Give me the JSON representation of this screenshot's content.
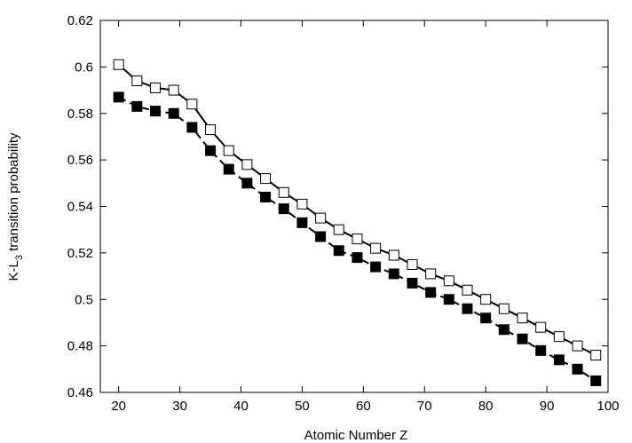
{
  "chart_data": {
    "type": "line",
    "title": "",
    "xlabel": "Atomic Number Z",
    "ylabel": {
      "base": "K-L",
      "subscript": "3",
      "rest": " transition probability"
    },
    "xlim": [
      17,
      100
    ],
    "ylim": [
      0.46,
      0.62
    ],
    "x_ticks": [
      20,
      30,
      40,
      50,
      60,
      70,
      80,
      90,
      100
    ],
    "y_ticks": [
      0.46,
      0.48,
      0.5,
      0.52,
      0.54,
      0.56,
      0.58,
      0.6,
      0.62
    ],
    "x_tick_labels": [
      "20",
      "30",
      "40",
      "50",
      "60",
      "70",
      "80",
      "90",
      "100"
    ],
    "y_tick_labels": [
      "0.46",
      "0.48",
      "0.5",
      "0.52",
      "0.54",
      "0.56",
      "0.58",
      "0.6",
      "0.62"
    ],
    "grid": false,
    "legend": "none",
    "series": [
      {
        "style": "solid-line-open-squares",
        "color": "#000000",
        "points": [
          [
            20,
            0.601
          ],
          [
            23,
            0.594
          ],
          [
            26,
            0.591
          ],
          [
            29,
            0.59
          ],
          [
            32,
            0.584
          ],
          [
            35,
            0.573
          ],
          [
            38,
            0.564
          ],
          [
            41,
            0.558
          ],
          [
            44,
            0.552
          ],
          [
            47,
            0.546
          ],
          [
            50,
            0.541
          ],
          [
            53,
            0.535
          ],
          [
            56,
            0.53
          ],
          [
            59,
            0.526
          ],
          [
            62,
            0.522
          ],
          [
            65,
            0.519
          ],
          [
            68,
            0.515
          ],
          [
            71,
            0.511
          ],
          [
            74,
            0.508
          ],
          [
            77,
            0.504
          ],
          [
            80,
            0.5
          ],
          [
            83,
            0.496
          ],
          [
            86,
            0.492
          ],
          [
            89,
            0.488
          ],
          [
            92,
            0.484
          ],
          [
            95,
            0.48
          ],
          [
            98,
            0.476
          ]
        ]
      },
      {
        "style": "dashed-line-filled-squares",
        "color": "#000000",
        "points": [
          [
            20,
            0.587
          ],
          [
            23,
            0.583
          ],
          [
            26,
            0.581
          ],
          [
            29,
            0.58
          ],
          [
            32,
            0.574
          ],
          [
            35,
            0.564
          ],
          [
            38,
            0.556
          ],
          [
            41,
            0.55
          ],
          [
            44,
            0.544
          ],
          [
            47,
            0.539
          ],
          [
            50,
            0.533
          ],
          [
            53,
            0.527
          ],
          [
            56,
            0.521
          ],
          [
            59,
            0.518
          ],
          [
            62,
            0.514
          ],
          [
            65,
            0.511
          ],
          [
            68,
            0.507
          ],
          [
            71,
            0.503
          ],
          [
            74,
            0.5
          ],
          [
            77,
            0.496
          ],
          [
            80,
            0.492
          ],
          [
            83,
            0.487
          ],
          [
            86,
            0.483
          ],
          [
            89,
            0.478
          ],
          [
            92,
            0.474
          ],
          [
            95,
            0.47
          ],
          [
            98,
            0.465
          ]
        ]
      }
    ]
  }
}
